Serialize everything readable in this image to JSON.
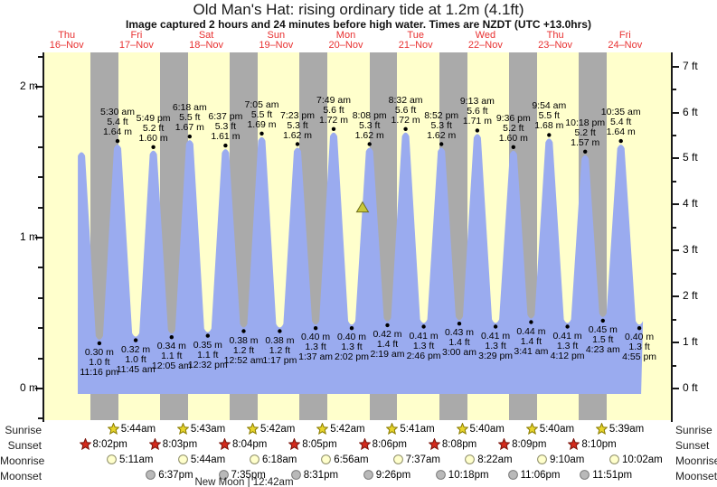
{
  "title": "Old Man's Hat: rising  ordinary tide at 1.2m (4.1ft)",
  "subtitle": "Image captured 2 hours and 24 minutes before high water. Times are NZDT (UTC +13.0hrs)",
  "days": [
    {
      "weekday": "Thu",
      "date": "16–Nov"
    },
    {
      "weekday": "Fri",
      "date": "17–Nov"
    },
    {
      "weekday": "Sat",
      "date": "18–Nov"
    },
    {
      "weekday": "Sun",
      "date": "19–Nov"
    },
    {
      "weekday": "Mon",
      "date": "20–Nov"
    },
    {
      "weekday": "Tue",
      "date": "21–Nov"
    },
    {
      "weekday": "Wed",
      "date": "22–Nov"
    },
    {
      "weekday": "Thu",
      "date": "23–Nov"
    },
    {
      "weekday": "Fri",
      "date": "24–Nov"
    }
  ],
  "y_axis_left": {
    "ticks": [
      {
        "m": 0,
        "label": "0 m"
      },
      {
        "m": 1,
        "label": "1 m"
      },
      {
        "m": 2,
        "label": "2 m"
      }
    ]
  },
  "y_axis_right": {
    "ticks": [
      {
        "ft": 0,
        "label": "0 ft"
      },
      {
        "ft": 1,
        "label": "1 ft"
      },
      {
        "ft": 2,
        "label": "2 ft"
      },
      {
        "ft": 3,
        "label": "3 ft"
      },
      {
        "ft": 4,
        "label": "4 ft"
      },
      {
        "ft": 5,
        "label": "5 ft"
      },
      {
        "ft": 6,
        "label": "6 ft"
      },
      {
        "ft": 7,
        "label": "7 ft"
      }
    ]
  },
  "chart_data": {
    "type": "area",
    "title": "Old Man's Hat: rising  ordinary tide at 1.2m (4.1ft)",
    "x_span_days": [
      "16-Nov",
      "24-Nov"
    ],
    "ylim_m": [
      -0.2,
      2.24
    ],
    "ylim_ft": [
      0,
      7
    ],
    "grid": false,
    "fill_color": "#9aabef",
    "night_color": "#aaaaaa",
    "day_color": "#ffffcc",
    "extremes": [
      {
        "kind": "H",
        "t": 0.712,
        "m": 1.59,
        "labeled": false
      },
      {
        "kind": "L",
        "t": 0.9694,
        "m": 0.3,
        "labeled": true,
        "m_label": "0.30 m",
        "ft_label": "1.0 ft",
        "time": "11:16 pm"
      },
      {
        "kind": "H",
        "t": 1.2292,
        "m": 1.64,
        "labeled": true,
        "m_label": "1.64 m",
        "ft_label": "5.4 ft",
        "time": "5:30 am"
      },
      {
        "kind": "L",
        "t": 1.4896,
        "m": 0.32,
        "labeled": true,
        "m_label": "0.32 m",
        "ft_label": "1.0 ft",
        "time": "11:45 am"
      },
      {
        "kind": "H",
        "t": 1.7424,
        "m": 1.6,
        "labeled": true,
        "m_label": "1.60 m",
        "ft_label": "5.2 ft",
        "time": "5:49 pm"
      },
      {
        "kind": "L",
        "t": 2.0035,
        "m": 0.34,
        "labeled": true,
        "m_label": "0.34 m",
        "ft_label": "1.1 ft",
        "time": "12:05 am"
      },
      {
        "kind": "H",
        "t": 2.2625,
        "m": 1.67,
        "labeled": true,
        "m_label": "1.67 m",
        "ft_label": "5.5 ft",
        "time": "6:18 am"
      },
      {
        "kind": "L",
        "t": 2.5222,
        "m": 0.35,
        "labeled": true,
        "m_label": "0.35 m",
        "ft_label": "1.1 ft",
        "time": "12:32 pm"
      },
      {
        "kind": "H",
        "t": 2.7757,
        "m": 1.61,
        "labeled": true,
        "m_label": "1.61 m",
        "ft_label": "5.3 ft",
        "time": "6:37 pm"
      },
      {
        "kind": "L",
        "t": 3.0361,
        "m": 0.38,
        "labeled": true,
        "m_label": "0.38 m",
        "ft_label": "1.2 ft",
        "time": "12:52 am"
      },
      {
        "kind": "H",
        "t": 3.2951,
        "m": 1.69,
        "labeled": true,
        "m_label": "1.69 m",
        "ft_label": "5.5 ft",
        "time": "7:05 am"
      },
      {
        "kind": "L",
        "t": 3.5535,
        "m": 0.38,
        "labeled": true,
        "m_label": "0.38 m",
        "ft_label": "1.2 ft",
        "time": "1:17 pm"
      },
      {
        "kind": "H",
        "t": 3.8076,
        "m": 1.62,
        "labeled": true,
        "m_label": "1.62 m",
        "ft_label": "5.3 ft",
        "time": "7:23 pm"
      },
      {
        "kind": "L",
        "t": 4.0674,
        "m": 0.4,
        "labeled": true,
        "m_label": "0.40 m",
        "ft_label": "1.3 ft",
        "time": "1:37 am"
      },
      {
        "kind": "H",
        "t": 4.3257,
        "m": 1.72,
        "labeled": true,
        "m_label": "1.72 m",
        "ft_label": "5.6 ft",
        "time": "7:49 am"
      },
      {
        "kind": "L",
        "t": 4.5847,
        "m": 0.4,
        "labeled": true,
        "m_label": "0.40 m",
        "ft_label": "1.3 ft",
        "time": "2:02 pm"
      },
      {
        "kind": "H",
        "t": 4.8389,
        "m": 1.62,
        "labeled": true,
        "m_label": "1.62 m",
        "ft_label": "5.3 ft",
        "time": "8:08 pm"
      },
      {
        "kind": "L",
        "t": 5.0965,
        "m": 0.42,
        "labeled": true,
        "m_label": "0.42 m",
        "ft_label": "1.4 ft",
        "time": "2:19 am"
      },
      {
        "kind": "H",
        "t": 5.3556,
        "m": 1.72,
        "labeled": true,
        "m_label": "1.72 m",
        "ft_label": "5.6 ft",
        "time": "8:32 am"
      },
      {
        "kind": "L",
        "t": 5.6153,
        "m": 0.41,
        "labeled": true,
        "m_label": "0.41 m",
        "ft_label": "1.3 ft",
        "time": "2:46 pm"
      },
      {
        "kind": "H",
        "t": 5.8694,
        "m": 1.62,
        "labeled": true,
        "m_label": "1.62 m",
        "ft_label": "5.3 ft",
        "time": "8:52 pm"
      },
      {
        "kind": "L",
        "t": 6.125,
        "m": 0.43,
        "labeled": true,
        "m_label": "0.43 m",
        "ft_label": "1.4 ft",
        "time": "3:00 am"
      },
      {
        "kind": "H",
        "t": 6.384,
        "m": 1.71,
        "labeled": true,
        "m_label": "1.71 m",
        "ft_label": "5.6 ft",
        "time": "9:13 am"
      },
      {
        "kind": "L",
        "t": 6.6451,
        "m": 0.41,
        "labeled": true,
        "m_label": "0.41 m",
        "ft_label": "1.3 ft",
        "time": "3:29 pm"
      },
      {
        "kind": "H",
        "t": 6.9,
        "m": 1.6,
        "labeled": true,
        "m_label": "1.60 m",
        "ft_label": "5.2 ft",
        "time": "9:36 pm"
      },
      {
        "kind": "L",
        "t": 7.1535,
        "m": 0.44,
        "labeled": true,
        "m_label": "0.44 m",
        "ft_label": "1.4 ft",
        "time": "3:41 am"
      },
      {
        "kind": "H",
        "t": 7.4125,
        "m": 1.68,
        "labeled": true,
        "m_label": "1.68 m",
        "ft_label": "5.5 ft",
        "time": "9:54 am"
      },
      {
        "kind": "L",
        "t": 7.675,
        "m": 0.41,
        "labeled": true,
        "m_label": "0.41 m",
        "ft_label": "1.3 ft",
        "time": "4:12 pm"
      },
      {
        "kind": "H",
        "t": 7.9292,
        "m": 1.57,
        "labeled": true,
        "m_label": "1.57 m",
        "ft_label": "5.2 ft",
        "time": "10:18 pm"
      },
      {
        "kind": "L",
        "t": 8.1826,
        "m": 0.45,
        "labeled": true,
        "m_label": "0.45 m",
        "ft_label": "1.5 ft",
        "time": "4:23 am"
      },
      {
        "kind": "H",
        "t": 8.441,
        "m": 1.64,
        "labeled": true,
        "m_label": "1.64 m",
        "ft_label": "5.4 ft",
        "time": "10:35 am"
      },
      {
        "kind": "L",
        "t": 8.7049,
        "m": 0.4,
        "labeled": true,
        "m_label": "0.40 m",
        "ft_label": "1.3 ft",
        "time": "4:55 pm"
      }
    ],
    "current_marker": {
      "t": 4.739,
      "m": 1.2
    }
  },
  "astro": {
    "sunrise": {
      "label": "Sunrise",
      "times": [
        {
          "t": 1.2389,
          "time": "5:44am"
        },
        {
          "t": 2.2382,
          "time": "5:43am"
        },
        {
          "t": 3.2375,
          "time": "5:42am"
        },
        {
          "t": 4.2375,
          "time": "5:42am"
        },
        {
          "t": 5.2368,
          "time": "5:41am"
        },
        {
          "t": 6.2361,
          "time": "5:40am"
        },
        {
          "t": 7.2361,
          "time": "5:40am"
        },
        {
          "t": 8.2354,
          "time": "5:39am"
        }
      ]
    },
    "sunset": {
      "label": "Sunset",
      "times": [
        {
          "t": 0.8347,
          "time": "8:02pm"
        },
        {
          "t": 1.8354,
          "time": "8:03pm"
        },
        {
          "t": 2.8361,
          "time": "8:04pm"
        },
        {
          "t": 3.8368,
          "time": "8:05pm"
        },
        {
          "t": 4.8375,
          "time": "8:06pm"
        },
        {
          "t": 5.8389,
          "time": "8:08pm"
        },
        {
          "t": 6.8396,
          "time": "8:09pm"
        },
        {
          "t": 7.8403,
          "time": "8:10pm"
        }
      ]
    },
    "moonrise": {
      "label": "Moonrise",
      "times": [
        {
          "t": 1.216,
          "time": "5:11am"
        },
        {
          "t": 2.2389,
          "time": "5:44am"
        },
        {
          "t": 3.2625,
          "time": "6:18am"
        },
        {
          "t": 4.2889,
          "time": "6:56am"
        },
        {
          "t": 5.3174,
          "time": "7:37am"
        },
        {
          "t": 6.3486,
          "time": "8:22am"
        },
        {
          "t": 7.3819,
          "time": "9:10am"
        },
        {
          "t": 8.4181,
          "time": "10:02am"
        }
      ]
    },
    "moonset": {
      "label": "Moonset",
      "times": [
        {
          "t": 1.7757,
          "time": "6:37pm"
        },
        {
          "t": 2.816,
          "time": "7:35pm"
        },
        {
          "t": 3.8549,
          "time": "8:31pm"
        },
        {
          "t": 4.8931,
          "time": "9:26pm"
        },
        {
          "t": 5.9292,
          "time": "10:18pm"
        },
        {
          "t": 6.9625,
          "time": "11:06pm"
        },
        {
          "t": 7.9938,
          "time": "11:51pm"
        }
      ]
    },
    "new_moon": "New Moon | 12:42am"
  },
  "colors": {
    "day_bg": "#ffffcc",
    "night_band": "#aaaaaa",
    "tide_fill": "#9aabef",
    "date_red": "#e83030",
    "sunrise_star": "#e8d52c",
    "sunset_star": "#d42a1c",
    "moonrise_circle": "#ffffcc",
    "moonset_circle": "#b9b9b9",
    "marker_triangle": "#c9c93a"
  }
}
